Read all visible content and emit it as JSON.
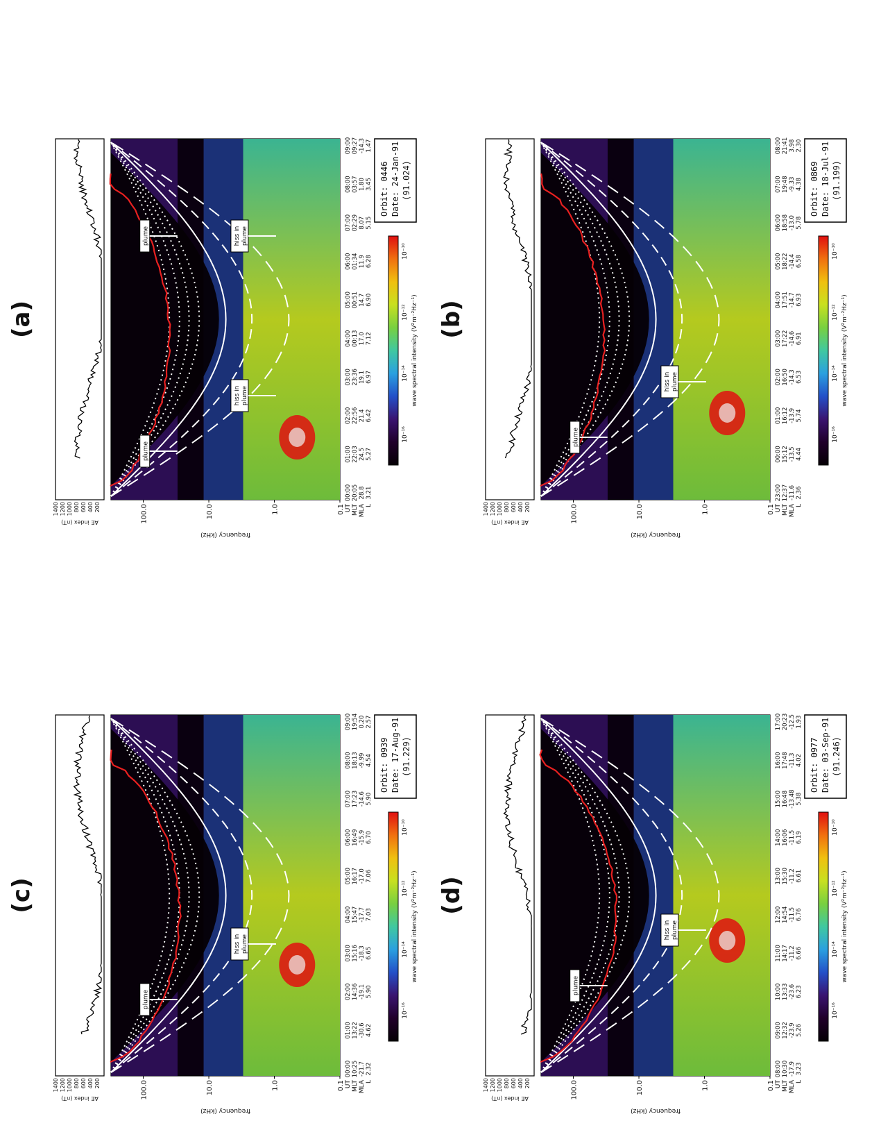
{
  "figure": {
    "panels": [
      {
        "label": "(a)",
        "orbit": "Orbit: 0446",
        "date": "Date:  24-Jan-91",
        "doy": "(91.024)",
        "annotations": [
          "plume",
          "plume",
          "hiss in\nplume",
          "hiss in\nplume"
        ],
        "time_rows": {
          "UT": [
            "00:00",
            "01:00",
            "02:00",
            "03:00",
            "04:00",
            "05:00",
            "06:00",
            "07:00",
            "08:00",
            "09:00"
          ],
          "MLT": [
            "20:05",
            "22:03",
            "22:56",
            "23:36",
            "00:13",
            "00:51",
            "01:34",
            "02:29",
            "03:57",
            "09:27"
          ],
          "MLA": [
            "28.8",
            "24.5",
            "21.4",
            "19.1",
            "17.0",
            "14.7",
            "11.9",
            "8.07",
            "1.80",
            "-14.3"
          ],
          "L": [
            "3.21",
            "5.27",
            "6.42",
            "6.97",
            "7.12",
            "6.90",
            "6.28",
            "5.15",
            "3.45",
            "1.47"
          ]
        }
      },
      {
        "label": "(b)",
        "orbit": "Orbit: 0869",
        "date": "Date:  18-Jul-91",
        "doy": "(91.199)",
        "annotations": [
          "plume",
          "hiss in\nplume"
        ],
        "time_rows": {
          "UT": [
            "23:00",
            "00:00",
            "01:00",
            "02:00",
            "03:00",
            "04:00",
            "05:00",
            "06:00",
            "07:00",
            "08:00"
          ],
          "MLT": [
            "12:37",
            "15:12",
            "16:12",
            "16:50",
            "17:22",
            "17:51",
            "18:22",
            "18:58",
            "19:48",
            "21:41"
          ],
          "MLA": [
            "-11.6",
            "-13.5",
            "-13.9",
            "-14.3",
            "-14.6",
            "-14.7",
            "-14.4",
            "-13.0",
            "-9.33",
            "3.98"
          ],
          "L": [
            "2.36",
            "4.44",
            "5.74",
            "6.53",
            "6.91",
            "6.93",
            "6.58",
            "5.78",
            "4.38",
            "2.30"
          ]
        }
      },
      {
        "label": "(c)",
        "orbit": "Orbit: 0939",
        "date": "Date:  17-Aug-91",
        "doy": "(91.229)",
        "annotations": [
          "plume",
          "hiss in\nplume"
        ],
        "time_rows": {
          "UT": [
            "00:00",
            "01:00",
            "02:00",
            "03:00",
            "04:00",
            "05:00",
            "06:00",
            "07:00",
            "08:00",
            "09:00"
          ],
          "MLT": [
            "10:25",
            "13:22",
            "14:36",
            "15:16",
            "15:47",
            "16:17",
            "16:49",
            "17:23",
            "18:13",
            "19:54"
          ],
          "MLA": [
            "-21.7",
            "-30.6",
            "-19.1",
            "-18.3",
            "-17.7",
            "-17.0",
            "-15.9",
            "-14.6",
            "-9.99",
            "0.20"
          ],
          "L": [
            "2.32",
            "4.62",
            "5.90",
            "6.65",
            "7.03",
            "7.06",
            "6.70",
            "5.90",
            "4.54",
            "2.57"
          ]
        }
      },
      {
        "label": "(d)",
        "orbit": "Orbit: 0977",
        "date": "Date:  03-Sep-91",
        "doy": "(91.246)",
        "annotations": [
          "plume",
          "hiss in\nplume"
        ],
        "time_rows": {
          "UT": [
            "08:00",
            "09:00",
            "10:00",
            "11:00",
            "12:00",
            "13:00",
            "14:00",
            "15:00",
            "16:00",
            "17:00"
          ],
          "MLT": [
            "10:30",
            "12:32",
            "13:33",
            "14:17",
            "14:54",
            "15:30",
            "16:06",
            "16:48",
            "17:48",
            "20:23"
          ],
          "MLA": [
            "-17.9",
            "-23.9",
            "-23.6",
            "-11.2",
            "-11.5",
            "-11.2",
            "-11.5",
            "-13.48",
            "-11.3",
            "-12.5"
          ],
          "L": [
            "3.23",
            "5.26",
            "6.23",
            "6.66",
            "6.76",
            "6.61",
            "6.19",
            "5.38",
            "4.02",
            "1.93"
          ]
        }
      }
    ]
  },
  "chart_data": {
    "type": "heatmap",
    "ae_axis": {
      "label": "AE index (nT)",
      "ticks": [
        1400,
        1200,
        1000,
        800,
        600,
        400,
        200
      ],
      "ylim": [
        0,
        1400
      ]
    },
    "freq_axis": {
      "label": "frequency  (kHz)",
      "ticks": [
        "100.0",
        "10.0",
        "1.0",
        "0.1"
      ],
      "scale": "log",
      "ylim": [
        0.1,
        311
      ]
    },
    "row_labels": [
      "UT",
      "MLT",
      "MLA",
      "L"
    ],
    "colorbar": {
      "label": "wave spectral intensity  (V²m⁻²Hz⁻¹)",
      "ticks": [
        "10⁻¹⁶",
        "10⁻¹⁴",
        "10⁻¹²",
        "10⁻¹⁰"
      ],
      "tick_values": [
        -16,
        -14,
        -12,
        -10
      ],
      "range": [
        -17,
        -9.5
      ],
      "colors": [
        "#050005",
        "#20002a",
        "#3a1470",
        "#2450c8",
        "#2aa0e0",
        "#40c8a0",
        "#78d040",
        "#c8e020",
        "#f0c010",
        "#f07010",
        "#e01010"
      ]
    }
  }
}
